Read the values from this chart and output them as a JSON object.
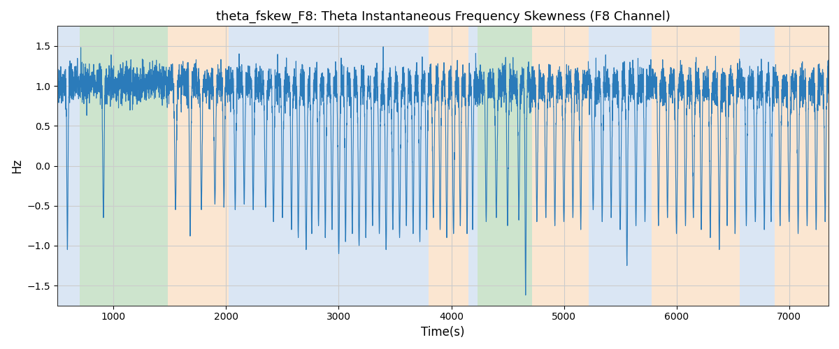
{
  "title": "theta_fskew_F8: Theta Instantaneous Frequency Skewness (F8 Channel)",
  "xlabel": "Time(s)",
  "ylabel": "Hz",
  "xlim": [
    500,
    7350
  ],
  "ylim": [
    -1.75,
    1.75
  ],
  "yticks": [
    -1.5,
    -1.0,
    -0.5,
    0.0,
    0.5,
    1.0,
    1.5
  ],
  "xticks": [
    1000,
    2000,
    3000,
    4000,
    5000,
    6000,
    7000
  ],
  "line_color": "#2b7bba",
  "background_color": "#ffffff",
  "grid_color": "#cccccc",
  "bands": [
    {
      "start": 500,
      "end": 700,
      "color": "#adc8e8",
      "alpha": 0.45
    },
    {
      "start": 700,
      "end": 1480,
      "color": "#90c490",
      "alpha": 0.45
    },
    {
      "start": 1480,
      "end": 2020,
      "color": "#f7c99a",
      "alpha": 0.45
    },
    {
      "start": 2020,
      "end": 3800,
      "color": "#adc8e8",
      "alpha": 0.45
    },
    {
      "start": 3800,
      "end": 4150,
      "color": "#f7c99a",
      "alpha": 0.45
    },
    {
      "start": 4150,
      "end": 4230,
      "color": "#adc8e8",
      "alpha": 0.45
    },
    {
      "start": 4230,
      "end": 4720,
      "color": "#90c490",
      "alpha": 0.45
    },
    {
      "start": 4720,
      "end": 5220,
      "color": "#f7c99a",
      "alpha": 0.45
    },
    {
      "start": 5220,
      "end": 5780,
      "color": "#adc8e8",
      "alpha": 0.45
    },
    {
      "start": 5780,
      "end": 6560,
      "color": "#f7c99a",
      "alpha": 0.45
    },
    {
      "start": 6560,
      "end": 6870,
      "color": "#adc8e8",
      "alpha": 0.45
    },
    {
      "start": 6870,
      "end": 7350,
      "color": "#f7c99a",
      "alpha": 0.45
    }
  ],
  "seed": 42,
  "n_points": 6850
}
